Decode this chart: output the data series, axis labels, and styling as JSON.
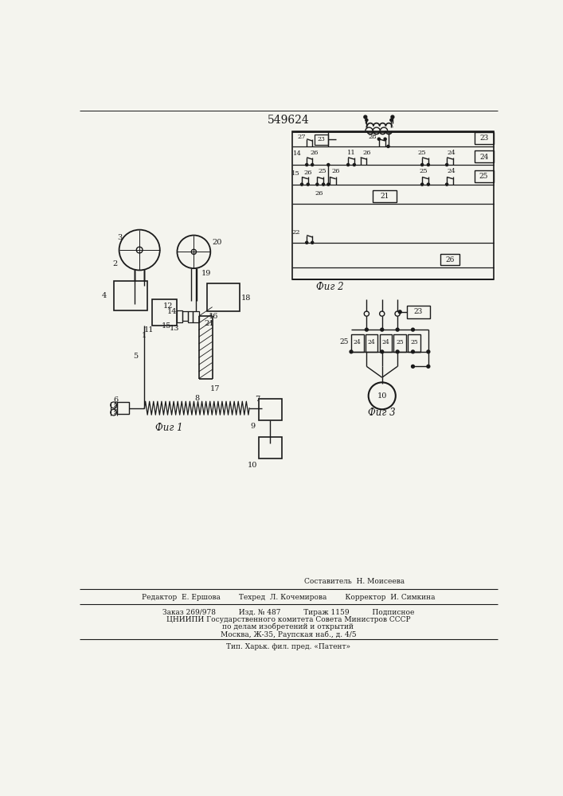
{
  "title": "549624",
  "fig_label1": "Фиг 1",
  "fig_label2": "Фиг 2",
  "fig_label3": "Фиг 3",
  "footer_line1": "Составитель  Н. Моисеева",
  "footer_line2": "Редактор  Е. Ершова        Техред  Л. Кочемирова        Корректор  И. Симкина",
  "footer_line3": "Заказ 269/978          Изд. № 487          Тираж 1159          Подписное",
  "footer_line4": "ЦНИИПИ Государственного комитета Совета Министров СССР",
  "footer_line5": "по делам изобретений и открытий",
  "footer_line6": "Москва, Ж-35, Раупская наб., д. 4/5",
  "footer_line7": "Тип. Харьк. фил. пред. «Патент»",
  "bg_color": "#f4f4ee",
  "line_color": "#1a1a1a"
}
